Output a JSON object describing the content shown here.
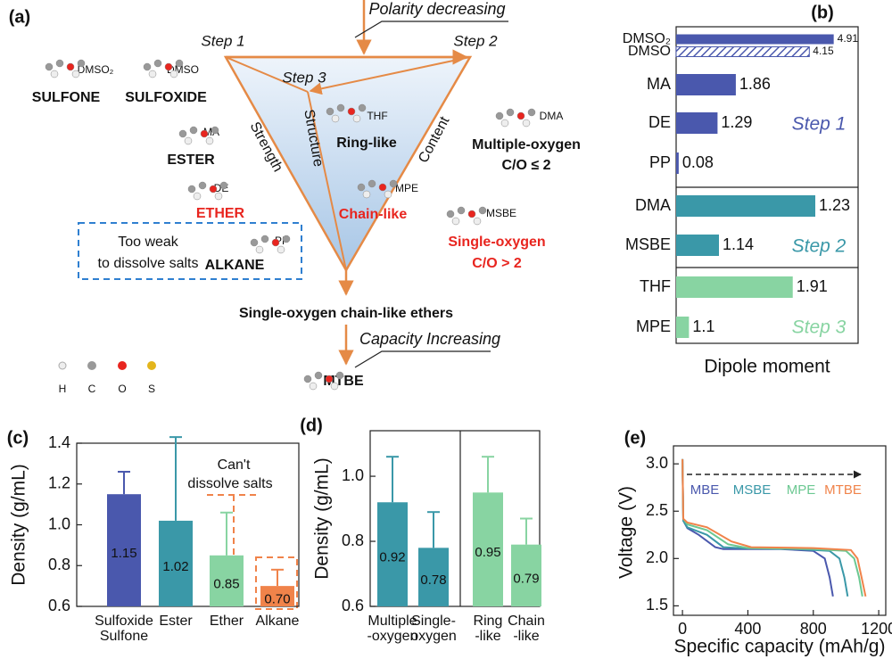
{
  "diagram": {
    "panel_label": "(a)",
    "polarity": "Polarity decreasing",
    "steps": [
      "Step 1",
      "Step 2",
      "Step 3"
    ],
    "edges": [
      "Strength",
      "Structure",
      "Content"
    ],
    "solvents": [
      {
        "abbr": "DMSO₂",
        "class": "SULFONE"
      },
      {
        "abbr": "DMSO",
        "class": "SULFOXIDE"
      },
      {
        "abbr": "MA",
        "class": "ESTER"
      },
      {
        "abbr": "DE",
        "class": "ETHER"
      },
      {
        "abbr": "PP",
        "class": "ALKANE"
      }
    ],
    "note": [
      "Too weak",
      "to dissolve salts"
    ],
    "ethers": [
      {
        "abbr": "THF",
        "class": [
          "Ring-like"
        ]
      },
      {
        "abbr": "MPE",
        "class": [
          "Chain-like"
        ]
      },
      {
        "abbr": "DMA",
        "class": [
          "Multiple-oxygen",
          "C/O ≤ 2"
        ]
      },
      {
        "abbr": "MSBE",
        "class": [
          "Single-oxygen",
          "C/O > 2"
        ]
      }
    ],
    "result": "Single-oxygen chain-like ethers",
    "capacity": "Capacity Increasing",
    "final": "MTBE",
    "atoms": [
      "H",
      "C",
      "O",
      "S"
    ]
  },
  "chart_data": [
    {
      "type": "bar",
      "orientation": "horizontal",
      "panel_label": "(b)",
      "categories": [
        "DMSO₂",
        "DMSO",
        "MA",
        "DE",
        "PP"
      ],
      "values": [
        4.91,
        4.15,
        1.86,
        1.29,
        0.08
      ],
      "hatch": [
        false,
        true,
        false,
        false,
        false
      ],
      "color": "#4a58ad",
      "xlim": [
        0,
        5.67
      ],
      "annotation": "Step 1"
    },
    {
      "type": "bar",
      "orientation": "horizontal",
      "categories": [
        "DMA",
        "MSBE"
      ],
      "values": [
        1.23,
        1.14
      ],
      "color": "#3a98a8",
      "xlim": [
        1.1,
        1.27
      ],
      "annotation": "Step 2"
    },
    {
      "type": "bar",
      "orientation": "horizontal",
      "categories": [
        "THF",
        "MPE"
      ],
      "values": [
        1.91,
        1.1
      ],
      "color": "#88d4a2",
      "xlim": [
        1.0,
        2.42
      ],
      "annotation": "Step 3",
      "xlabel": "Dipole moment"
    },
    {
      "type": "bar",
      "panel_label": "(c)",
      "categories": [
        [
          "Sulfoxide",
          "Sulfone"
        ],
        [
          "Ester"
        ],
        [
          "Ether"
        ],
        [
          "Alkane"
        ]
      ],
      "values": [
        1.15,
        1.02,
        0.85,
        0.7
      ],
      "value_labels": [
        "1.15",
        "1.02",
        "0.85",
        "0.70"
      ],
      "errors": [
        0.11,
        0.41,
        0.21,
        0.08
      ],
      "colors": [
        "#4a58ad",
        "#3a98a8",
        "#88d4a2",
        "#f0834a"
      ],
      "ylim": [
        0.6,
        1.4
      ],
      "yticks": [
        0.6,
        0.8,
        {
          "value": 1,
          "label": "1.0"
        },
        1.2,
        1.4
      ],
      "ylabel": "Density (g/mL)",
      "annotation": [
        "Can't",
        "dissolve salts"
      ]
    },
    {
      "type": "bar",
      "panel_label": "(d)",
      "categories": [
        [
          "Multiple",
          "-oxygen"
        ],
        [
          "Single-",
          "oxygen"
        ],
        [
          "Ring",
          "-like"
        ],
        [
          "Chain",
          "-like"
        ]
      ],
      "values": [
        0.92,
        0.78,
        0.95,
        0.79
      ],
      "errors": [
        0.14,
        0.11,
        0.11,
        0.08
      ],
      "colors": [
        "#3a98a8",
        "#3a98a8",
        "#88d4a2",
        "#88d4a2"
      ],
      "ylim": [
        0.6,
        1.14
      ],
      "yticks": [
        0.6,
        0.8,
        {
          "value": 1,
          "label": "1.0"
        }
      ],
      "ylabel": "Density (g/mL)"
    },
    {
      "type": "line",
      "panel_label": "(e)",
      "xlim": [
        -55,
        1243
      ],
      "ylim": [
        1.4,
        3.19
      ],
      "xticks": [
        0,
        400,
        800,
        1200
      ],
      "yticks": [
        1.5,
        {
          "value": 2,
          "label": "2.0"
        },
        2.5,
        {
          "value": 3,
          "label": "3.0"
        }
      ],
      "xlabel": "Specific capacity (mAh/g)",
      "ylabel": "Voltage (V)",
      "series": [
        {
          "name": "MBE",
          "color": "#4a58ad",
          "x": [
            0,
            5,
            30,
            100,
            200,
            250,
            300,
            600,
            800,
            870,
            900,
            920
          ],
          "values": [
            3.05,
            2.4,
            2.32,
            2.25,
            2.12,
            2.1,
            2.1,
            2.1,
            2.08,
            2.0,
            1.8,
            1.6
          ]
        },
        {
          "name": "MSBE",
          "color": "#3a98a8",
          "x": [
            0,
            5,
            30,
            150,
            250,
            350,
            700,
            900,
            960,
            990,
            1010
          ],
          "values": [
            3.05,
            2.4,
            2.33,
            2.25,
            2.12,
            2.11,
            2.1,
            2.08,
            2.0,
            1.8,
            1.6
          ]
        },
        {
          "name": "MPE",
          "color": "#6cc892",
          "x": [
            0,
            5,
            30,
            150,
            280,
            400,
            800,
            1000,
            1050,
            1080,
            1100
          ],
          "values": [
            3.05,
            2.42,
            2.36,
            2.3,
            2.15,
            2.11,
            2.1,
            2.08,
            2.0,
            1.8,
            1.6
          ]
        },
        {
          "name": "MTBE",
          "color": "#f0834a",
          "x": [
            0,
            5,
            30,
            150,
            300,
            420,
            800,
            1030,
            1070,
            1095,
            1120
          ],
          "values": [
            3.05,
            2.42,
            2.38,
            2.33,
            2.18,
            2.12,
            2.11,
            2.09,
            2.0,
            1.8,
            1.6
          ]
        }
      ]
    }
  ]
}
